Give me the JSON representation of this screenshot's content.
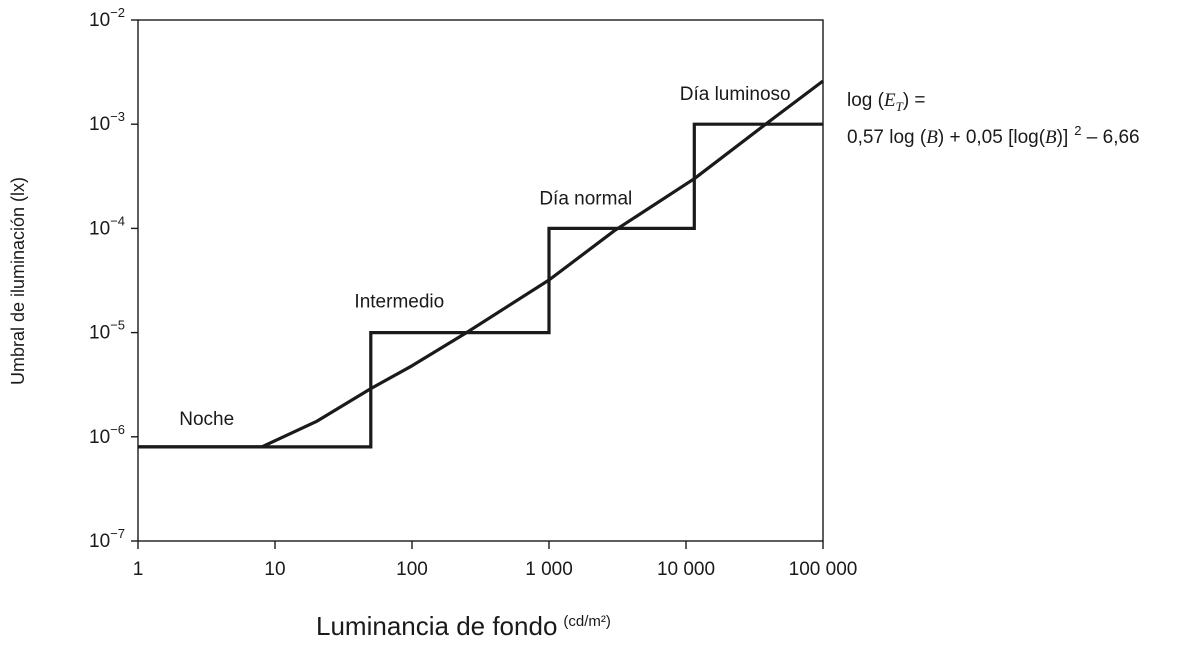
{
  "chart_data": {
    "type": "line",
    "title": "",
    "xlabel": "Luminancia de fondo",
    "xlabel_unit": "(cd/m²)",
    "ylabel": "Umbral de iluminación (lx)",
    "x_scale": "log",
    "y_scale": "log",
    "xlim": [
      1,
      100000
    ],
    "ylim": [
      1e-07,
      0.01
    ],
    "x_ticks": [
      {
        "value": 1,
        "label": "1"
      },
      {
        "value": 10,
        "label": "10"
      },
      {
        "value": 100,
        "label": "100"
      },
      {
        "value": 1000,
        "label": "1 000"
      },
      {
        "value": 10000,
        "label": "10 000"
      },
      {
        "value": 100000,
        "label": "100 000"
      }
    ],
    "y_ticks": [
      {
        "value": 1e-07,
        "base": "10",
        "exp": "−7"
      },
      {
        "value": 1e-06,
        "base": "10",
        "exp": "−6"
      },
      {
        "value": 1e-05,
        "base": "10",
        "exp": "−5"
      },
      {
        "value": 0.0001,
        "base": "10",
        "exp": "−4"
      },
      {
        "value": 0.001,
        "base": "10",
        "exp": "−3"
      },
      {
        "value": 0.01,
        "base": "10",
        "exp": "−2"
      }
    ],
    "grid": false,
    "legend": "none",
    "color": "#1a1a1a",
    "series": [
      {
        "kind": "step",
        "x": [
          1,
          50,
          50,
          1000,
          1000,
          11500,
          11500,
          100000
        ],
        "y": [
          8e-07,
          8e-07,
          1e-05,
          1e-05,
          0.0001,
          0.0001,
          0.001,
          0.001
        ]
      },
      {
        "kind": "curve",
        "x": [
          1,
          8,
          20,
          50,
          100,
          250,
          1000,
          3000,
          11500,
          40000,
          100000
        ],
        "y": [
          8e-07,
          8e-07,
          1.4e-06,
          2.9e-06,
          4.8e-06,
          1e-05,
          3.2e-05,
          9.5e-05,
          0.0003,
          0.00105,
          0.0026
        ]
      }
    ],
    "annotations": [
      {
        "text": "Noche",
        "x": 2,
        "y": 1.3e-06
      },
      {
        "text": "Intermedio",
        "x": 38,
        "y": 1.75e-05
      },
      {
        "text": "Día normal",
        "x": 850,
        "y": 0.00017
      },
      {
        "text": "Día luminoso",
        "x": 9000,
        "y": 0.0017
      }
    ],
    "formula": {
      "line1_prefix": "log (",
      "line1_var": "E",
      "line1_sub": "T",
      "line1_suffix": ") =",
      "line2_a": "0,57 log (",
      "line2_b_var": "B",
      "line2_c": ") + 0,05 [log(",
      "line2_d_var": "B",
      "line2_e": ")]",
      "line2_exp": "2",
      "line2_f": " – 6,66"
    }
  }
}
